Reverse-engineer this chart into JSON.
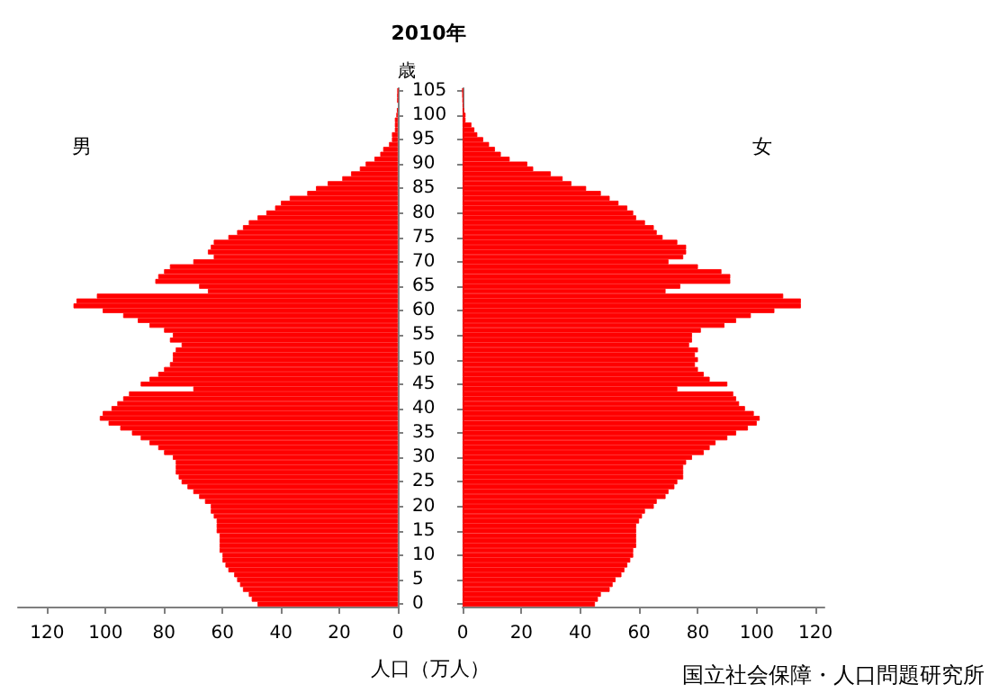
{
  "chart_data": [
    {
      "type": "bar",
      "title": "2010年",
      "ylabel": "歳",
      "xlabel": "人口（万人）",
      "orientation": "horizontal",
      "categories": [
        "105",
        null,
        null,
        null,
        null,
        "100",
        null,
        null,
        null,
        null,
        "95",
        null,
        null,
        null,
        null,
        "90",
        null,
        null,
        null,
        null,
        "85",
        null,
        null,
        null,
        null,
        "80",
        null,
        null,
        null,
        null,
        "75",
        null,
        null,
        null,
        null,
        "70",
        null,
        null,
        null,
        null,
        "65",
        null,
        null,
        null,
        null,
        "60",
        null,
        null,
        null,
        null,
        "55",
        null,
        null,
        null,
        null,
        "50",
        null,
        null,
        null,
        null,
        "45",
        null,
        null,
        null,
        null,
        "40",
        null,
        null,
        null,
        null,
        "35",
        null,
        null,
        null,
        null,
        "30",
        null,
        null,
        null,
        null,
        "25",
        null,
        null,
        null,
        null,
        "20",
        null,
        null,
        null,
        null,
        "15",
        null,
        null,
        null,
        null,
        "10",
        null,
        null,
        null,
        null,
        "5",
        null,
        null,
        null,
        null,
        "0"
      ],
      "xlim": [
        130,
        0
      ],
      "xticks": [
        120,
        100,
        80,
        60,
        40,
        20,
        0
      ],
      "series": [
        {
          "name": "男",
          "color": "#ff0000",
          "values": [
            0,
            0.1,
            0.1,
            null,
            0.3,
            0.5,
            1,
            1,
            1,
            2,
            2,
            3,
            5,
            6,
            8,
            11,
            13,
            16,
            19,
            24,
            28,
            31,
            37,
            40,
            42,
            45,
            48,
            51,
            53,
            55,
            58,
            63,
            64,
            65,
            63,
            70,
            78,
            80,
            82,
            83,
            68,
            65,
            103,
            110,
            111,
            101,
            94,
            89,
            85,
            80,
            77,
            78,
            74,
            76,
            77,
            77,
            78,
            80,
            82,
            85,
            88,
            70,
            92,
            94,
            96,
            98,
            101,
            102,
            99,
            95,
            91,
            88,
            85,
            82,
            80,
            77,
            76,
            76,
            76,
            75,
            74,
            72,
            70,
            68,
            66,
            64,
            64,
            63,
            62,
            62,
            62,
            61,
            61,
            61,
            61,
            60,
            60,
            59,
            58,
            56,
            55,
            54,
            53,
            51,
            50,
            48
          ]
        }
      ]
    },
    {
      "type": "bar",
      "orientation": "horizontal",
      "tick_labels": "x",
      "categories": [
        "105",
        null,
        null,
        null,
        null,
        "100",
        null,
        null,
        null,
        null,
        "95",
        null,
        null,
        null,
        null,
        "90",
        null,
        null,
        null,
        null,
        "85",
        null,
        null,
        null,
        null,
        "80",
        null,
        null,
        null,
        null,
        "75",
        null,
        null,
        null,
        null,
        "70",
        null,
        null,
        null,
        null,
        "65",
        null,
        null,
        null,
        null,
        "60",
        null,
        null,
        null,
        null,
        "55",
        null,
        null,
        null,
        null,
        "50",
        null,
        null,
        null,
        null,
        "45",
        null,
        null,
        null,
        null,
        "40",
        null,
        null,
        null,
        null,
        "35",
        null,
        null,
        null,
        null,
        "30",
        null,
        null,
        null,
        null,
        "25",
        null,
        null,
        null,
        null,
        "20",
        null,
        null,
        null,
        null,
        "15",
        null,
        null,
        null,
        null,
        "10",
        null,
        null,
        null,
        null,
        "5",
        null,
        null,
        null,
        null,
        "0"
      ],
      "xlim": [
        0,
        123
      ],
      "xticks": [
        0,
        20,
        40,
        60,
        80,
        100,
        120
      ],
      "annotations": [
        "国立社会保障・人口問題研究所"
      ],
      "series": [
        {
          "name": "女",
          "color": "#ff0000",
          "values": [
            0,
            0.1,
            0.2,
            0.3,
            0.5,
            1,
            1,
            3,
            4,
            5,
            7,
            9,
            11,
            13,
            16,
            22,
            24,
            30,
            34,
            37,
            42,
            47,
            50,
            53,
            56,
            58,
            59,
            62,
            65,
            66,
            68,
            73,
            76,
            76,
            75,
            70,
            80,
            88,
            91,
            91,
            74,
            69,
            109,
            115,
            115,
            106,
            98,
            93,
            89,
            81,
            78,
            78,
            77,
            80,
            79,
            80,
            79,
            80,
            82,
            84,
            90,
            73,
            92,
            93,
            94,
            96,
            99,
            101,
            100,
            97,
            93,
            90,
            86,
            84,
            82,
            78,
            76,
            75,
            75,
            75,
            73,
            72,
            70,
            69,
            66,
            65,
            62,
            61,
            60,
            59,
            59,
            59,
            59,
            59,
            58,
            58,
            57,
            56,
            55,
            54,
            52,
            51,
            50,
            47,
            46,
            45
          ]
        }
      ]
    }
  ]
}
